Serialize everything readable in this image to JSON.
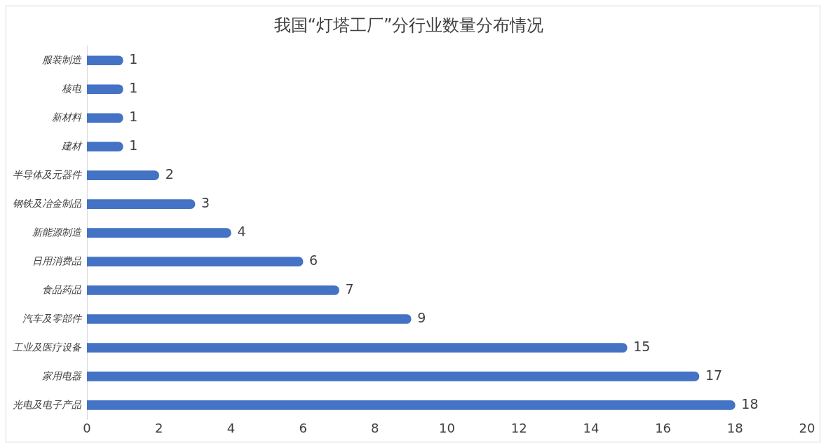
{
  "chart_data": {
    "type": "bar",
    "orientation": "horizontal",
    "title": "我国“灯塔工厂”分行业数量分布情况",
    "categories": [
      "服装制造",
      "核电",
      "新材料",
      "建材",
      "半导体及元器件",
      "钢铁及冶金制品",
      "新能源制造",
      "日用消费品",
      "食品药品",
      "汽车及零部件",
      "工业及医疗设备",
      "家用电器",
      "光电及电子产品"
    ],
    "values": [
      1,
      1,
      1,
      1,
      2,
      3,
      4,
      6,
      7,
      9,
      15,
      17,
      18
    ],
    "color": "#4472c4",
    "xlim": [
      0,
      20
    ],
    "xticks": [
      0,
      2,
      4,
      6,
      8,
      10,
      12,
      14,
      16,
      18,
      20
    ],
    "grid": false,
    "legend": false,
    "data_labels": true
  }
}
